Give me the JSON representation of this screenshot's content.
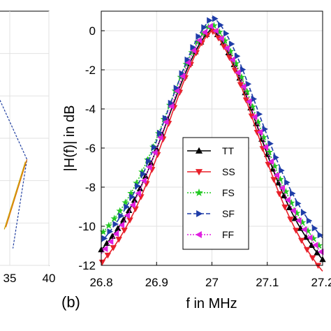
{
  "panel_label": "(b)",
  "chart_data": [
    {
      "type": "line",
      "partial": true,
      "xlim": [
        15,
        40
      ],
      "ylim": [
        0,
        6
      ],
      "x_tick_labels": [
        "35",
        "40"
      ],
      "x_ticks": [
        35,
        40
      ],
      "series": [
        {
          "color": "#1f3ea0",
          "style": "dashed",
          "x": [
            33,
            37.2,
            35.4
          ],
          "y": [
            4.2,
            2.5,
            0.4
          ]
        },
        {
          "color": "#e07000",
          "style": "solid",
          "x": [
            37.2,
            34.5
          ],
          "y": [
            2.5,
            0.9
          ]
        },
        {
          "color": "#c8a000",
          "style": "solid",
          "x": [
            37.0,
            34.3
          ],
          "y": [
            2.45,
            0.85
          ]
        }
      ]
    },
    {
      "type": "line",
      "xlabel": "f in MHz",
      "ylabel": "|H(f)| in dB",
      "xlim": [
        26.8,
        27.2
      ],
      "ylim": [
        -12,
        1
      ],
      "x_ticks": [
        26.8,
        26.9,
        27,
        27.1,
        27.2
      ],
      "x_tick_labels": [
        "26.8",
        "26.9",
        "27",
        "27.1",
        "27.2"
      ],
      "y_ticks": [
        0,
        -2,
        -4,
        -6,
        -8,
        -10,
        -12
      ],
      "y_tick_labels": [
        "0",
        "-2",
        "-4",
        "-6",
        "-8",
        "-10",
        "-12"
      ],
      "grid": true,
      "legend_position": "center-right",
      "series": [
        {
          "name": "TT",
          "color": "#000000",
          "marker": "triangle-up",
          "style": "solid",
          "center": 27.0,
          "peak": 0.1,
          "left_end": -11.2,
          "right_end": -11.7
        },
        {
          "name": "SS",
          "color": "#e8202a",
          "marker": "triangle-down",
          "style": "solid",
          "center": 27.0,
          "peak": 0.0,
          "left_end": -11.9,
          "right_end": -12.3
        },
        {
          "name": "FS",
          "color": "#22c822",
          "marker": "star",
          "style": "dotted",
          "center": 27.0,
          "peak": 0.35,
          "left_end": -10.4,
          "right_end": -11.2
        },
        {
          "name": "SF",
          "color": "#1e3ca8",
          "marker": "triangle-right",
          "style": "dashed",
          "center": 27.002,
          "peak": 0.7,
          "left_end": -10.8,
          "right_end": -10.6
        },
        {
          "name": "FF",
          "color": "#e020e0",
          "marker": "triangle-left",
          "style": "dotted",
          "center": 26.998,
          "peak": 0.25,
          "left_end": -11.4,
          "right_end": -11.4
        }
      ]
    }
  ]
}
